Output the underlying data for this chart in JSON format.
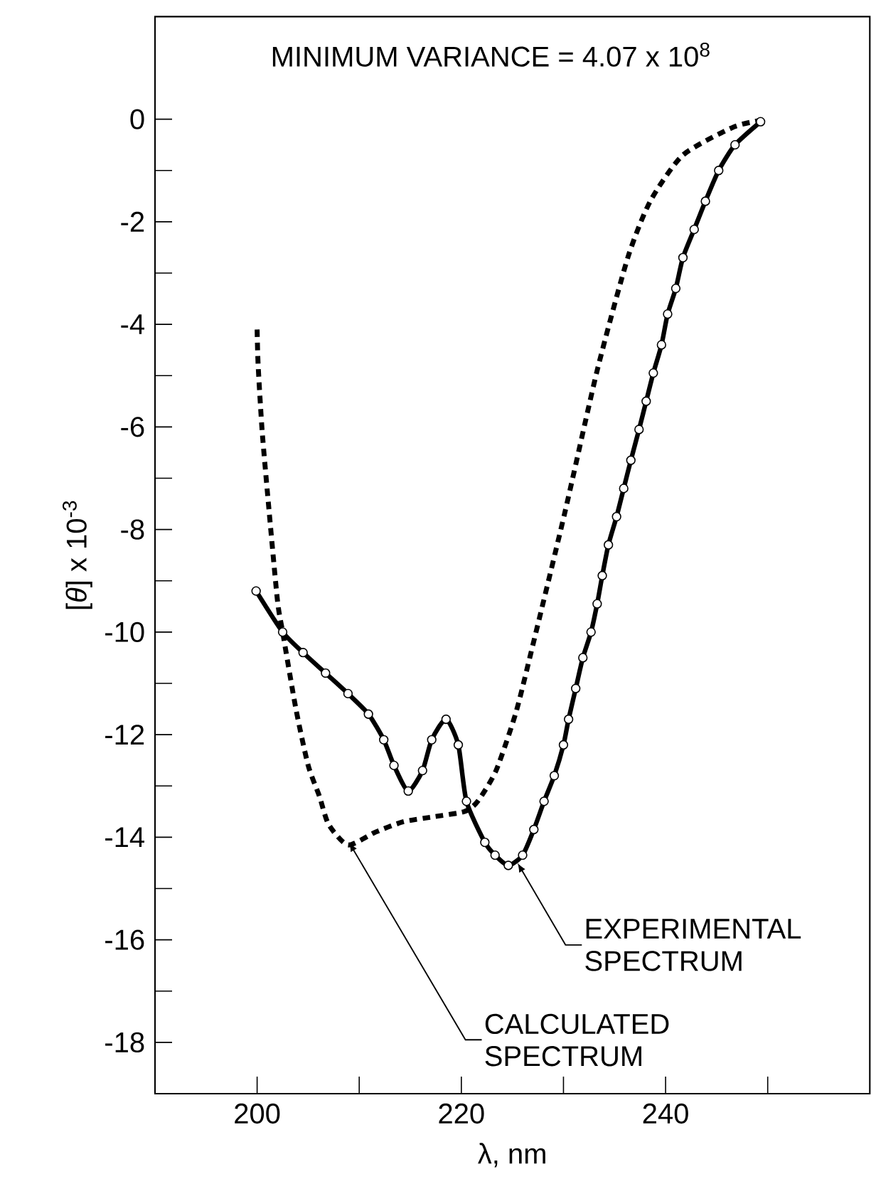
{
  "chart_data": {
    "type": "line",
    "title": "MINIMUM VARIANCE = 4.07 x 10$^{8}$",
    "xlabel": "λ, nm",
    "ylabel": "[*θ*] x 10$^{-3}$",
    "xlim": [
      190,
      260
    ],
    "ylim": [
      -19,
      2
    ],
    "xticks": [
      200,
      {
        "value": 210,
        "label": null
      },
      220,
      {
        "value": 230,
        "label": null
      },
      240,
      {
        "value": 250,
        "label": null
      }
    ],
    "yticks": [
      -18,
      {
        "value": -17,
        "label": null
      },
      -16,
      {
        "value": -15,
        "label": null
      },
      -14,
      {
        "value": -13,
        "label": null
      },
      -12,
      {
        "value": -11,
        "label": null
      },
      -10,
      {
        "value": -9,
        "label": null
      },
      -8,
      {
        "value": -7,
        "label": null
      },
      -6,
      {
        "value": -5,
        "label": null
      },
      -4,
      {
        "value": -3,
        "label": null
      },
      -2,
      {
        "value": -1,
        "label": null
      },
      0
    ],
    "grid": false,
    "series": [
      {
        "color": "#000000",
        "line_style": "dashed",
        "marker": "none",
        "x": [
          200.0,
          200.1,
          200.5,
          201.2,
          202.0,
          202.5,
          203.8,
          205.0,
          206.1,
          207.0,
          208.9,
          211.6,
          214.3,
          217.3,
          220.3,
          221.6,
          223.4,
          225.3,
          226.7,
          230.1,
          233.3,
          236.3,
          238.5,
          241.7,
          246.7,
          250.0
        ],
        "values": [
          -4.1,
          -4.8,
          -6.1,
          -7.7,
          -9.4,
          -10.0,
          -11.5,
          -12.6,
          -13.2,
          -13.75,
          -14.15,
          -13.9,
          -13.7,
          -13.6,
          -13.5,
          -13.3,
          -12.7,
          -11.6,
          -10.5,
          -7.7,
          -4.9,
          -2.7,
          -1.6,
          -0.7,
          -0.15,
          0.0
        ]
      },
      {
        "color": "#000000",
        "line_style": "solid",
        "marker": "circle",
        "x": [
          199.9,
          202.5,
          204.5,
          206.7,
          208.9,
          210.9,
          212.4,
          213.4,
          214.8,
          216.2,
          217.1,
          218.5,
          219.7,
          220.5,
          222.3,
          223.3,
          224.6,
          226.0,
          227.1,
          228.1,
          229.1,
          230.0,
          230.5,
          231.2,
          231.9,
          232.7,
          233.3,
          233.8,
          234.4,
          235.2,
          235.9,
          236.6,
          237.4,
          238.1,
          238.8,
          239.6,
          240.2,
          241.0,
          241.7,
          242.8,
          243.9,
          245.2,
          246.8,
          249.3
        ],
        "values": [
          -9.2,
          -10.0,
          -10.4,
          -10.8,
          -11.2,
          -11.6,
          -12.1,
          -12.6,
          -13.1,
          -12.7,
          -12.1,
          -11.7,
          -12.2,
          -13.3,
          -14.1,
          -14.35,
          -14.55,
          -14.35,
          -13.85,
          -13.3,
          -12.8,
          -12.2,
          -11.7,
          -11.1,
          -10.5,
          -10.0,
          -9.45,
          -8.9,
          -8.3,
          -7.75,
          -7.2,
          -6.65,
          -6.05,
          -5.5,
          -4.95,
          -4.4,
          -3.8,
          -3.3,
          -2.7,
          -2.15,
          -1.6,
          -1.0,
          -0.5,
          -0.05
        ]
      }
    ],
    "annotations": [
      {
        "text": "EXPERIMENTAL SPECTRUM",
        "x": 225.5,
        "y": -14.5
      },
      {
        "text": "CALCULATED SPECTRUM",
        "x": 209,
        "y": -14.1
      }
    ]
  }
}
